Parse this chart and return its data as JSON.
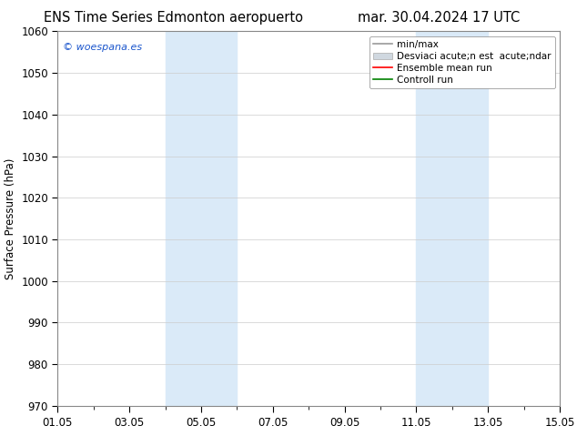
{
  "title_left": "ENS Time Series Edmonton aeropuerto",
  "title_right": "mar. 30.04.2024 17 UTC",
  "ylabel": "Surface Pressure (hPa)",
  "ylim": [
    970,
    1060
  ],
  "yticks": [
    970,
    980,
    990,
    1000,
    1010,
    1020,
    1030,
    1040,
    1050,
    1060
  ],
  "xlim": [
    0,
    14
  ],
  "xtick_positions": [
    0,
    2,
    4,
    6,
    8,
    10,
    12,
    14
  ],
  "xtick_labels": [
    "01.05",
    "03.05",
    "05.05",
    "07.05",
    "09.05",
    "11.05",
    "13.05",
    "15.05"
  ],
  "shaded_bands": [
    {
      "xmin": 3.0,
      "xmax": 5.0
    },
    {
      "xmin": 10.0,
      "xmax": 12.0
    }
  ],
  "shade_color": "#daeaf8",
  "watermark": "© woespana.es",
  "bg_color": "#ffffff",
  "grid_color": "#cccccc",
  "title_fontsize": 10.5,
  "axis_label_fontsize": 8.5,
  "tick_fontsize": 8.5,
  "legend_fontsize": 7.5
}
